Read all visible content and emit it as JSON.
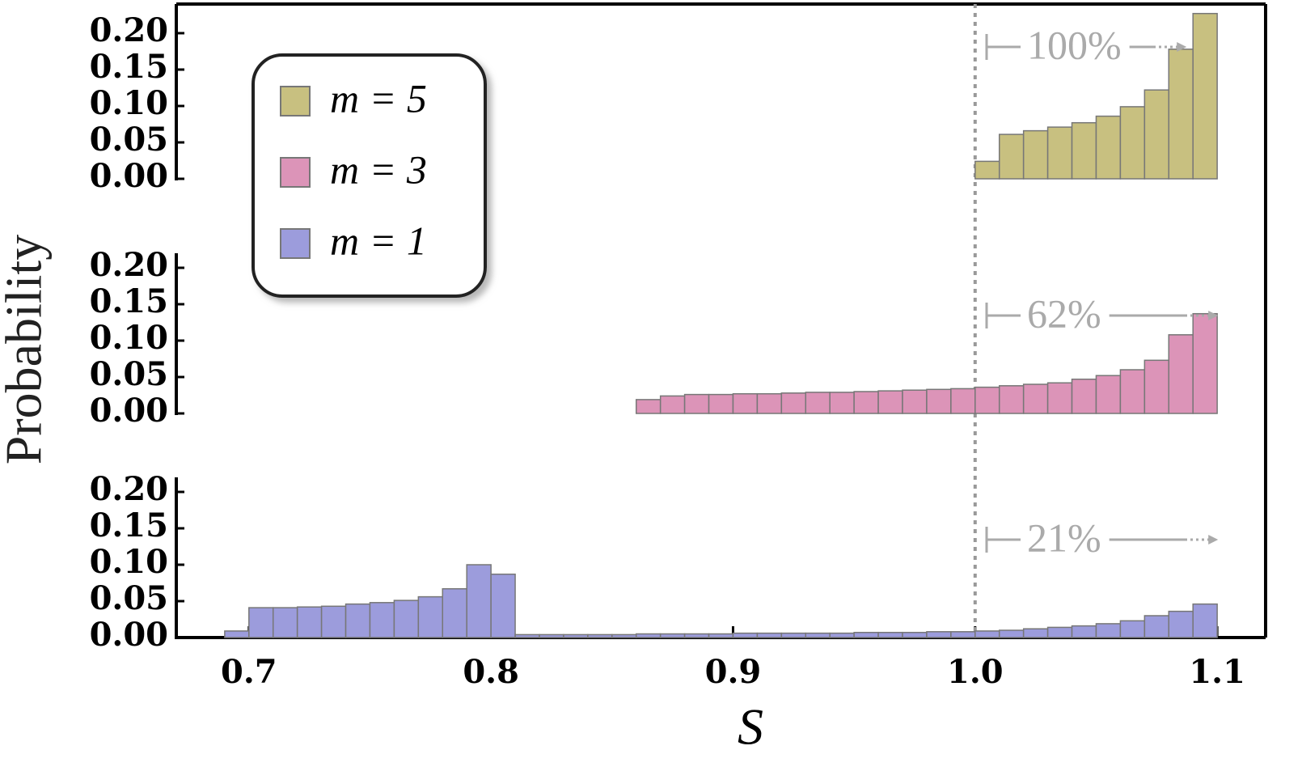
{
  "chart_data": {
    "type": "histogram",
    "xlabel": "S",
    "ylabel": "Probability",
    "xlim": [
      0.67,
      1.12
    ],
    "xticks": [
      0.7,
      0.8,
      0.9,
      {
        "value": 1,
        "label": "1.0"
      },
      1.1
    ],
    "ylim": [
      0,
      0.24
    ],
    "yticks": [
      {
        "value": 0,
        "label": "0.00"
      },
      0.05,
      {
        "value": 0.1,
        "label": "0.10"
      },
      0.15,
      {
        "value": 0.2,
        "label": "0.20"
      }
    ],
    "vline": 1,
    "series": [
      {
        "name": "m = 5",
        "color": "#c8c080",
        "annotation": "100%",
        "bins": [
          1.0,
          1.01,
          1.02,
          1.03,
          1.04,
          1.05,
          1.06,
          1.07,
          1.08,
          1.09,
          1.1
        ],
        "values": [
          0.024,
          0.061,
          0.066,
          0.071,
          0.077,
          0.086,
          0.099,
          0.122,
          0.178,
          0.227
        ]
      },
      {
        "name": "m = 3",
        "color": "#dc94b8",
        "annotation": "62%",
        "bins": [
          0.86,
          0.87,
          0.88,
          0.89,
          0.9,
          0.91,
          0.92,
          0.93,
          0.94,
          0.95,
          0.96,
          0.97,
          0.98,
          0.99,
          1.0,
          1.01,
          1.02,
          1.03,
          1.04,
          1.05,
          1.06,
          1.07,
          1.08,
          1.09,
          1.1
        ],
        "values": [
          0.019,
          0.024,
          0.026,
          0.026,
          0.027,
          0.027,
          0.028,
          0.029,
          0.029,
          0.03,
          0.031,
          0.032,
          0.033,
          0.034,
          0.036,
          0.038,
          0.04,
          0.042,
          0.047,
          0.052,
          0.06,
          0.073,
          0.108,
          0.137
        ]
      },
      {
        "name": "m = 1",
        "color": "#9c9cdc",
        "annotation": "21%",
        "bins": [
          0.69,
          0.7,
          0.71,
          0.72,
          0.73,
          0.74,
          0.75,
          0.76,
          0.77,
          0.78,
          0.79,
          0.8,
          0.81,
          0.82,
          0.83,
          0.84,
          0.85,
          0.86,
          0.87,
          0.88,
          0.89,
          0.9,
          0.91,
          0.92,
          0.93,
          0.94,
          0.95,
          0.96,
          0.97,
          0.98,
          0.99,
          1.0,
          1.01,
          1.02,
          1.03,
          1.04,
          1.05,
          1.06,
          1.07,
          1.08,
          1.09,
          1.1
        ],
        "values": [
          0.009,
          0.041,
          0.041,
          0.042,
          0.043,
          0.046,
          0.048,
          0.051,
          0.056,
          0.067,
          0.1,
          0.087,
          0.004,
          0.004,
          0.004,
          0.004,
          0.004,
          0.005,
          0.005,
          0.005,
          0.005,
          0.006,
          0.006,
          0.006,
          0.006,
          0.006,
          0.007,
          0.007,
          0.007,
          0.008,
          0.008,
          0.009,
          0.01,
          0.012,
          0.014,
          0.016,
          0.019,
          0.023,
          0.03,
          0.036,
          0.046
        ]
      }
    ]
  }
}
